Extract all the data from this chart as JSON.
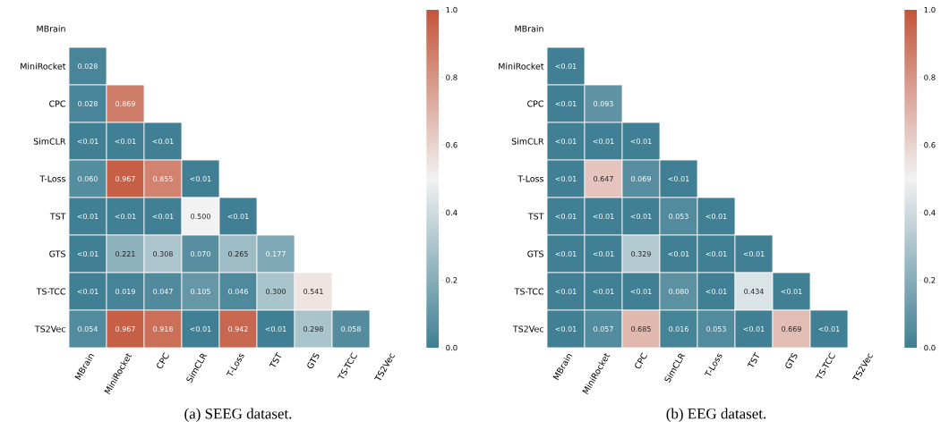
{
  "chart_data": [
    {
      "type": "heatmap",
      "title": "(a)  SEEG dataset.",
      "categories": [
        "MBrain",
        "MiniRocket",
        "CPC",
        "SimCLR",
        "T-Loss",
        "TST",
        "GTS",
        "TS-TCC",
        "TS2Vec"
      ],
      "y_categories": [
        "MBrain",
        "MiniRocket",
        "CPC",
        "SimCLR",
        "T-Loss",
        "TST",
        "GTS",
        "TS-TCC",
        "TS2Vec"
      ],
      "cells": [
        [
          null,
          null,
          null,
          null,
          null,
          null,
          null,
          null,
          null
        ],
        [
          0.028,
          null,
          null,
          null,
          null,
          null,
          null,
          null,
          null
        ],
        [
          0.028,
          0.869,
          null,
          null,
          null,
          null,
          null,
          null,
          null
        ],
        [
          0.005,
          0.005,
          0.005,
          null,
          null,
          null,
          null,
          null,
          null
        ],
        [
          0.06,
          0.967,
          0.855,
          0.005,
          null,
          null,
          null,
          null,
          null
        ],
        [
          0.005,
          0.005,
          0.005,
          0.5,
          0.005,
          null,
          null,
          null,
          null
        ],
        [
          0.005,
          0.221,
          0.308,
          0.07,
          0.265,
          0.177,
          null,
          null,
          null
        ],
        [
          0.005,
          0.019,
          0.047,
          0.105,
          0.046,
          0.3,
          0.541,
          null,
          null
        ],
        [
          0.054,
          0.967,
          0.918,
          0.005,
          0.942,
          0.005,
          0.298,
          0.058,
          null
        ]
      ],
      "cell_labels": [
        [
          null,
          null,
          null,
          null,
          null,
          null,
          null,
          null,
          null
        ],
        [
          "0.028",
          null,
          null,
          null,
          null,
          null,
          null,
          null,
          null
        ],
        [
          "0.028",
          "0.869",
          null,
          null,
          null,
          null,
          null,
          null,
          null
        ],
        [
          "<0.01",
          "<0.01",
          "<0.01",
          null,
          null,
          null,
          null,
          null,
          null
        ],
        [
          "0.060",
          "0.967",
          "0.855",
          "<0.01",
          null,
          null,
          null,
          null,
          null
        ],
        [
          "<0.01",
          "<0.01",
          "<0.01",
          "0.500",
          "<0.01",
          null,
          null,
          null,
          null
        ],
        [
          "<0.01",
          "0.221",
          "0.308",
          "0.070",
          "0.265",
          "0.177",
          null,
          null,
          null
        ],
        [
          "<0.01",
          "0.019",
          "0.047",
          "0.105",
          "0.046",
          "0.300",
          "0.541",
          null,
          null
        ],
        [
          "0.054",
          "0.967",
          "0.918",
          "<0.01",
          "0.942",
          "<0.01",
          "0.298",
          "0.058",
          null
        ]
      ],
      "clim": [
        0,
        1
      ],
      "cticks": [
        {
          "value": 0,
          "label": "0.0"
        },
        {
          "value": 0.2,
          "label": "0.2"
        },
        {
          "value": 0.4,
          "label": "0.4"
        },
        {
          "value": 0.6,
          "label": "0.6"
        },
        {
          "value": 0.8,
          "label": "0.8"
        },
        {
          "value": 1,
          "label": "1.0"
        }
      ]
    },
    {
      "type": "heatmap",
      "title": "(b)  EEG dataset.",
      "categories": [
        "MBrain",
        "MiniRocket",
        "CPC",
        "SimCLR",
        "T-Loss",
        "TST",
        "GTS",
        "TS-TCC",
        "TS2Vec"
      ],
      "y_categories": [
        "MBrain",
        "MiniRocket",
        "CPC",
        "SimCLR",
        "T-Loss",
        "TST",
        "GTS",
        "TS-TCC",
        "TS2Vec"
      ],
      "cells": [
        [
          null,
          null,
          null,
          null,
          null,
          null,
          null,
          null,
          null
        ],
        [
          0.005,
          null,
          null,
          null,
          null,
          null,
          null,
          null,
          null
        ],
        [
          0.005,
          0.093,
          null,
          null,
          null,
          null,
          null,
          null,
          null
        ],
        [
          0.005,
          0.005,
          0.005,
          null,
          null,
          null,
          null,
          null,
          null
        ],
        [
          0.005,
          0.647,
          0.069,
          0.005,
          null,
          null,
          null,
          null,
          null
        ],
        [
          0.005,
          0.005,
          0.005,
          0.053,
          0.005,
          null,
          null,
          null,
          null
        ],
        [
          0.005,
          0.005,
          0.329,
          0.005,
          0.005,
          0.005,
          null,
          null,
          null
        ],
        [
          0.005,
          0.005,
          0.005,
          0.08,
          0.005,
          0.434,
          0.005,
          null,
          null
        ],
        [
          0.005,
          0.057,
          0.685,
          0.016,
          0.053,
          0.005,
          0.669,
          0.005,
          null
        ]
      ],
      "cell_labels": [
        [
          null,
          null,
          null,
          null,
          null,
          null,
          null,
          null,
          null
        ],
        [
          "<0.01",
          null,
          null,
          null,
          null,
          null,
          null,
          null,
          null
        ],
        [
          "<0.01",
          "0.093",
          null,
          null,
          null,
          null,
          null,
          null,
          null
        ],
        [
          "<0.01",
          "<0.01",
          "<0.01",
          null,
          null,
          null,
          null,
          null,
          null
        ],
        [
          "<0.01",
          "0.647",
          "0.069",
          "<0.01",
          null,
          null,
          null,
          null,
          null
        ],
        [
          "<0.01",
          "<0.01",
          "<0.01",
          "0.053",
          "<0.01",
          null,
          null,
          null,
          null
        ],
        [
          "<0.01",
          "<0.01",
          "0.329",
          "<0.01",
          "<0.01",
          "<0.01",
          null,
          null,
          null
        ],
        [
          "<0.01",
          "<0.01",
          "<0.01",
          "0.080",
          "<0.01",
          "0.434",
          "<0.01",
          null,
          null
        ],
        [
          "<0.01",
          "0.057",
          "0.685",
          "0.016",
          "0.053",
          "<0.01",
          "0.669",
          "<0.01",
          null
        ]
      ],
      "clim": [
        0,
        1
      ],
      "cticks": [
        {
          "value": 0,
          "label": "0.0"
        },
        {
          "value": 0.2,
          "label": "0.2"
        },
        {
          "value": 0.4,
          "label": "0.4"
        },
        {
          "value": 0.6,
          "label": "0.6"
        },
        {
          "value": 0.8,
          "label": "0.8"
        },
        {
          "value": 1,
          "label": "1.0"
        }
      ]
    }
  ]
}
